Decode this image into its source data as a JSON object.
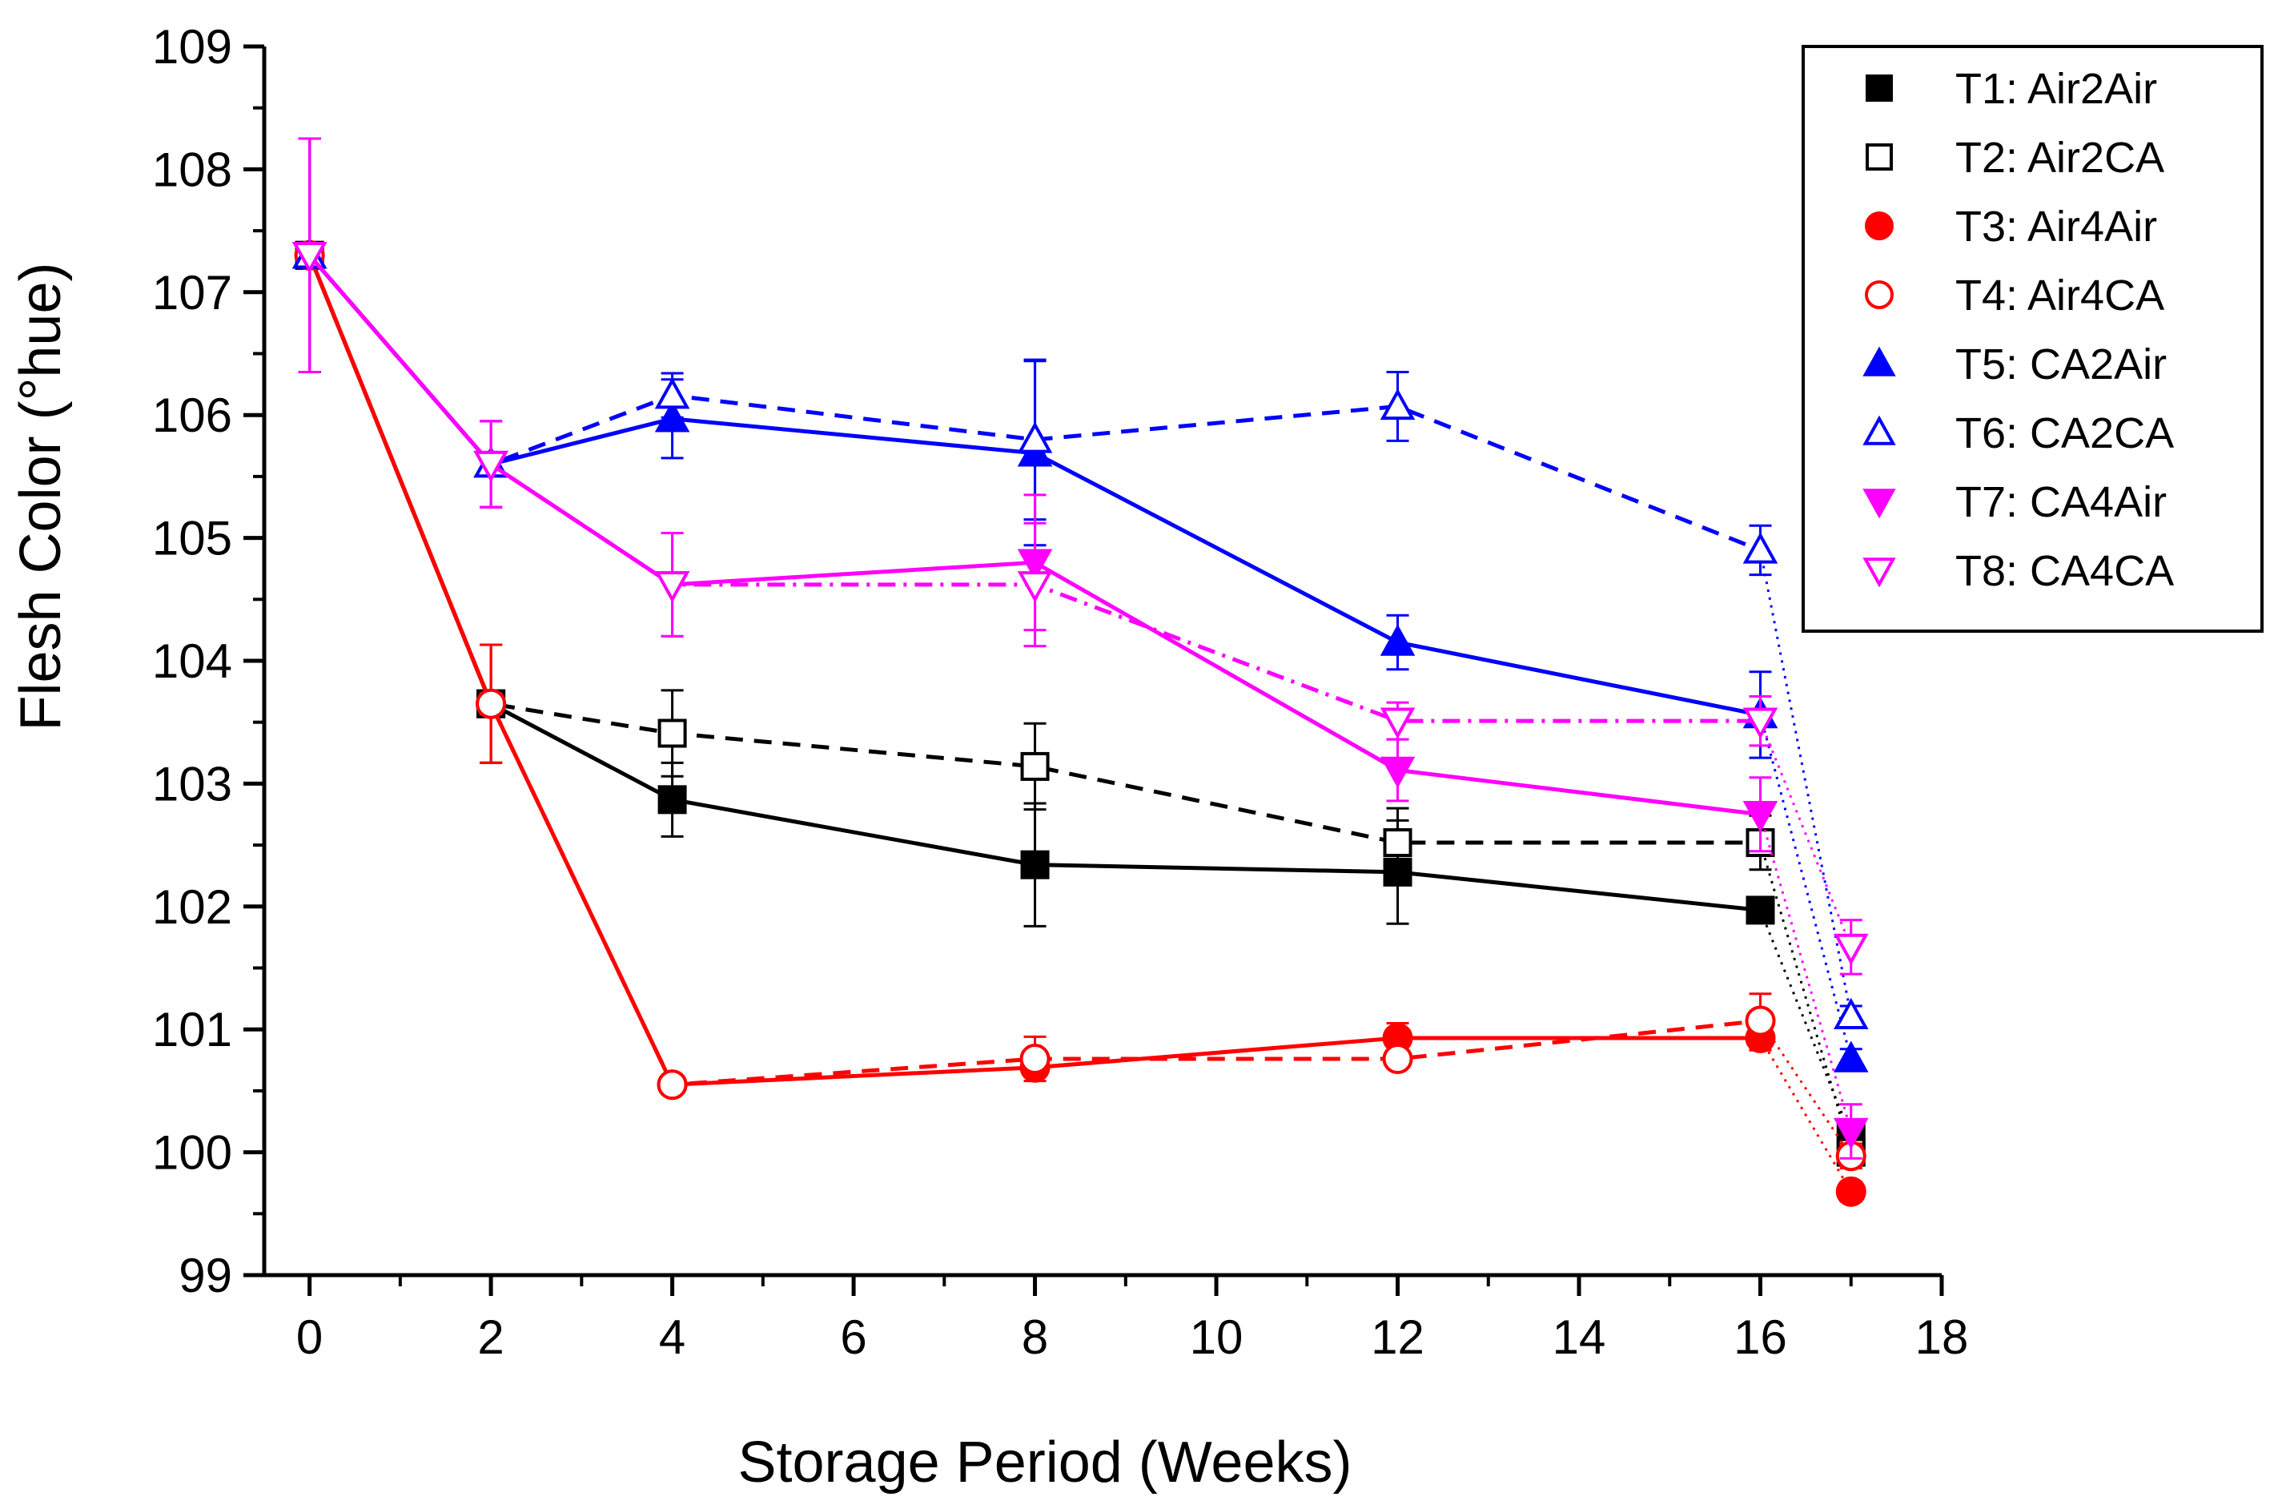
{
  "chart_data": {
    "type": "line",
    "title": "",
    "xlabel": "Storage Period (Weeks)",
    "ylabel": "Flesh Color (°hue)",
    "xlim": [
      -0.5,
      18
    ],
    "ylim": [
      99,
      109
    ],
    "xticks": [
      0,
      2,
      4,
      6,
      8,
      10,
      12,
      14,
      16,
      18
    ],
    "yticks": [
      99,
      100,
      101,
      102,
      103,
      104,
      105,
      106,
      107,
      108,
      109
    ],
    "legend_position": "top-right",
    "series": [
      {
        "name": "T1: Air2Air",
        "color": "#000000",
        "marker": "square",
        "filled": true,
        "line": "solid",
        "x": [
          0,
          2,
          4,
          8,
          12,
          16,
          17
        ],
        "y": [
          107.3,
          103.65,
          102.87,
          102.34,
          102.28,
          101.97,
          100.13
        ],
        "err": [
          0.95,
          0.48,
          0.3,
          0.5,
          0.42,
          0,
          0.1
        ]
      },
      {
        "name": "T2: Air2CA",
        "color": "#000000",
        "marker": "square",
        "filled": false,
        "line": "dashed",
        "x": [
          0,
          2,
          4,
          8,
          12,
          16,
          17
        ],
        "y": [
          107.3,
          103.65,
          103.41,
          103.14,
          102.52,
          102.52,
          100.0
        ],
        "err": [
          0.95,
          0.48,
          0.35,
          0.35,
          0.28,
          0.22,
          0.1
        ]
      },
      {
        "name": "T3: Air4Air",
        "color": "#ff0000",
        "marker": "circle",
        "filled": true,
        "line": "solid",
        "x": [
          0,
          2,
          4,
          8,
          12,
          16,
          17
        ],
        "y": [
          107.3,
          103.65,
          100.55,
          100.69,
          100.93,
          100.93,
          99.68
        ],
        "err": [
          0.95,
          0.48,
          0.05,
          0.06,
          0.12,
          0.1,
          0.08
        ]
      },
      {
        "name": "T4: Air4CA",
        "color": "#ff0000",
        "marker": "circle",
        "filled": false,
        "line": "dashed",
        "x": [
          0,
          2,
          4,
          8,
          12,
          16,
          17
        ],
        "y": [
          107.3,
          103.65,
          100.55,
          100.76,
          100.76,
          101.07,
          99.97
        ],
        "err": [
          0.95,
          0.48,
          0.05,
          0.18,
          0.07,
          0.22,
          0.1
        ]
      },
      {
        "name": "T5: CA2Air",
        "color": "#0000ff",
        "marker": "triangle-up",
        "filled": true,
        "line": "solid",
        "x": [
          0,
          2,
          4,
          8,
          12,
          16,
          17
        ],
        "y": [
          107.3,
          105.6,
          105.97,
          105.69,
          104.15,
          103.56,
          100.76
        ],
        "err": [
          0.95,
          0.35,
          0.32,
          0.75,
          0.22,
          0.35,
          0.08
        ]
      },
      {
        "name": "T6: CA2CA",
        "color": "#0000ff",
        "marker": "triangle-up",
        "filled": false,
        "line": "dashed",
        "x": [
          0,
          2,
          4,
          8,
          12,
          16,
          17
        ],
        "y": [
          107.3,
          105.6,
          106.16,
          105.8,
          106.07,
          104.9,
          101.11
        ],
        "err": [
          0.95,
          0.35,
          0.18,
          0.65,
          0.28,
          0.2,
          0.08
        ]
      },
      {
        "name": "T7: CA4Air",
        "color": "#ff00ff",
        "marker": "triangle-down",
        "filled": true,
        "line": "solid",
        "x": [
          0,
          2,
          4,
          8,
          12,
          16,
          17
        ],
        "y": [
          107.3,
          105.6,
          104.62,
          104.8,
          103.11,
          102.75,
          100.17
        ],
        "err": [
          0.95,
          0.35,
          0.42,
          0.55,
          0.25,
          0.3,
          0.22
        ]
      },
      {
        "name": "T8: CA4CA",
        "color": "#ff00ff",
        "marker": "triangle-down",
        "filled": false,
        "line": "dashed",
        "x": [
          0,
          2,
          4,
          8,
          12,
          16,
          17
        ],
        "y": [
          107.3,
          105.6,
          104.62,
          104.62,
          103.51,
          103.51,
          101.67
        ],
        "err": [
          0.95,
          0.35,
          0.42,
          0.5,
          0.15,
          0.2,
          0.22
        ]
      }
    ]
  }
}
